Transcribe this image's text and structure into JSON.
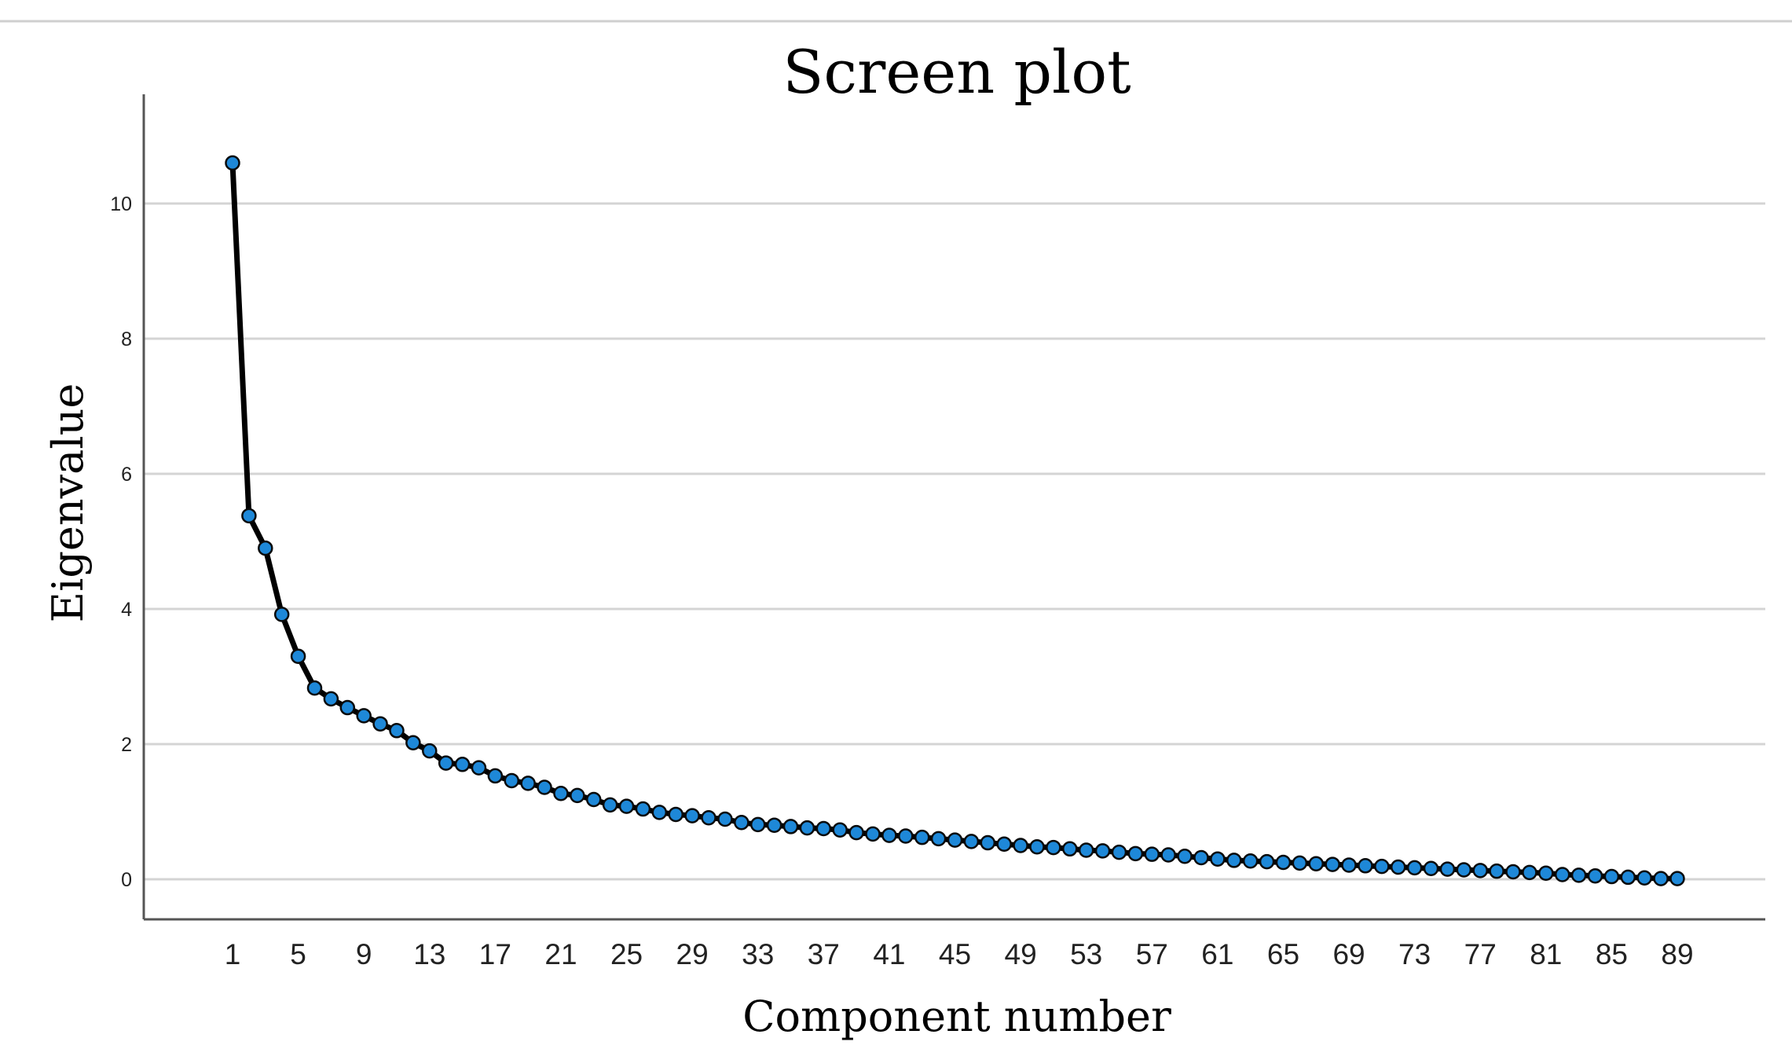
{
  "chart_data": {
    "type": "line",
    "title": "Screen plot",
    "xlabel": "Component number",
    "ylabel": "Eigenvalue",
    "xlim": [
      1,
      89
    ],
    "ylim": [
      -0.6,
      11.6
    ],
    "y_ticks": [
      0,
      2,
      4,
      6,
      8,
      10
    ],
    "x_ticks": [
      1,
      5,
      9,
      13,
      17,
      21,
      25,
      29,
      33,
      37,
      41,
      45,
      49,
      53,
      57,
      61,
      65,
      69,
      73,
      77,
      81,
      85,
      89
    ],
    "grid": "horizontal",
    "line_color": "#000000",
    "marker_color": "#1e88d8",
    "series": [
      {
        "x": [
          1,
          2,
          3,
          4,
          5,
          6,
          7,
          8,
          9,
          10,
          11,
          12,
          13,
          14,
          15,
          16,
          17,
          18,
          19,
          20,
          21,
          22,
          23,
          24,
          25,
          26,
          27,
          28,
          29,
          30,
          31,
          32,
          33,
          34,
          35,
          36,
          37,
          38,
          39,
          40,
          41,
          42,
          43,
          44,
          45,
          46,
          47,
          48,
          49,
          50,
          51,
          52,
          53,
          54,
          55,
          56,
          57,
          58,
          59,
          60,
          61,
          62,
          63,
          64,
          65,
          66,
          67,
          68,
          69,
          70,
          71,
          72,
          73,
          74,
          75,
          76,
          77,
          78,
          79,
          80,
          81,
          82,
          83,
          84,
          85,
          86,
          87,
          88,
          89
        ],
        "values": [
          10.6,
          5.38,
          4.9,
          3.92,
          3.3,
          2.83,
          2.67,
          2.54,
          2.42,
          2.3,
          2.2,
          2.02,
          1.9,
          1.72,
          1.7,
          1.65,
          1.53,
          1.46,
          1.42,
          1.36,
          1.27,
          1.24,
          1.18,
          1.1,
          1.08,
          1.04,
          0.99,
          0.96,
          0.94,
          0.91,
          0.89,
          0.84,
          0.81,
          0.8,
          0.78,
          0.76,
          0.75,
          0.73,
          0.69,
          0.67,
          0.65,
          0.64,
          0.62,
          0.6,
          0.58,
          0.56,
          0.54,
          0.52,
          0.5,
          0.48,
          0.47,
          0.45,
          0.43,
          0.42,
          0.4,
          0.38,
          0.37,
          0.36,
          0.34,
          0.32,
          0.3,
          0.28,
          0.27,
          0.26,
          0.25,
          0.24,
          0.23,
          0.22,
          0.21,
          0.2,
          0.19,
          0.18,
          0.17,
          0.16,
          0.15,
          0.14,
          0.13,
          0.12,
          0.11,
          0.1,
          0.09,
          0.07,
          0.06,
          0.05,
          0.04,
          0.03,
          0.02,
          0.01,
          0.01
        ]
      }
    ]
  }
}
